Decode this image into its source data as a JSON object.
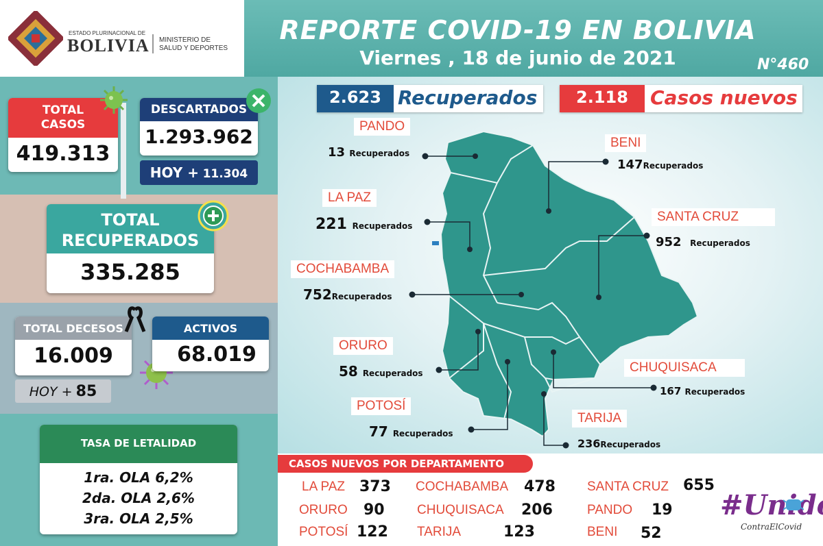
{
  "header": {
    "org_small": "ESTADO PLURINACIONAL DE",
    "org_big": "BOLIVIA",
    "ministry_line1": "MINISTERIO DE",
    "ministry_line2": "SALUD Y DEPORTES",
    "title": "REPORTE COVID-19 EN BOLIVIA",
    "date_day": "Viernes",
    "date_rest": ", 18 de junio de 2021",
    "report_number": "N°460"
  },
  "totals": {
    "total_casos_label1": "TOTAL",
    "total_casos_label2": "CASOS",
    "total_casos_value": "419.313",
    "descartados_label": "DESCARTADOS",
    "descartados_value": "1.293.962",
    "descartados_hoy_label": "HOY +",
    "descartados_hoy_value": "11.304",
    "recuperados_label1": "TOTAL",
    "recuperados_label2": "RECUPERADOS",
    "recuperados_value": "335.285",
    "decesos_label": "TOTAL DECESOS",
    "decesos_value": "16.009",
    "decesos_hoy_label": "HOY +",
    "decesos_hoy_value": "85",
    "activos_label": "ACTIVOS",
    "activos_value": "68.019"
  },
  "letalidad": {
    "title": "TASA DE LETALIDAD",
    "lines": [
      "1ra. OLA 6,2%",
      "2da. OLA 2,6%",
      "3ra. OLA 2,5%"
    ]
  },
  "map": {
    "recuperados_value": "2.623",
    "recuperados_label": "Recuperados",
    "nuevos_value": "2.118",
    "nuevos_label": "Casos nuevos",
    "rec_word": "Recuperados",
    "departments": [
      {
        "name": "PANDO",
        "value": "13"
      },
      {
        "name": "BENI",
        "value": "147"
      },
      {
        "name": "LA PAZ",
        "value": "221"
      },
      {
        "name": "SANTA CRUZ",
        "value": "952"
      },
      {
        "name": "COCHABAMBA",
        "value": "752"
      },
      {
        "name": "ORURO",
        "value": "58"
      },
      {
        "name": "CHUQUISACA",
        "value": "167"
      },
      {
        "name": "POTOSÍ",
        "value": "77"
      },
      {
        "name": "TARIJA",
        "value": "236"
      }
    ]
  },
  "nuevos_table": {
    "title": "CASOS NUEVOS POR DEPARTAMENTO",
    "rows": [
      [
        {
          "name": "LA PAZ",
          "value": "373"
        },
        {
          "name": "COCHABAMBA",
          "value": "478"
        },
        {
          "name": "SANTA CRUZ",
          "value": "655"
        }
      ],
      [
        {
          "name": "ORURO",
          "value": "90"
        },
        {
          "name": "CHUQUISACA",
          "value": "206"
        },
        {
          "name": "PANDO",
          "value": "19"
        }
      ],
      [
        {
          "name": "POTOSÍ",
          "value": "122"
        },
        {
          "name": "TARIJA",
          "value": "123"
        },
        {
          "name": "BENI",
          "value": "52"
        }
      ]
    ]
  },
  "campaign": {
    "hashtag": "#Unidos",
    "sub": "ContraElCovid"
  },
  "icons": [
    "virus-icon",
    "close-icon",
    "plus-icon",
    "mourning-ribbon-icon",
    "shield-emblem-icon",
    "mask-icon"
  ]
}
